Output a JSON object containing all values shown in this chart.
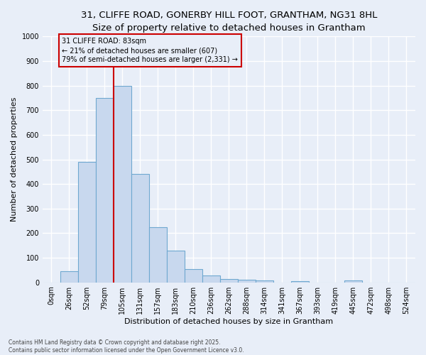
{
  "title_line1": "31, CLIFFE ROAD, GONERBY HILL FOOT, GRANTHAM, NG31 8HL",
  "title_line2": "Size of property relative to detached houses in Grantham",
  "xlabel": "Distribution of detached houses by size in Grantham",
  "ylabel": "Number of detached properties",
  "footer_line1": "Contains HM Land Registry data © Crown copyright and database right 2025.",
  "footer_line2": "Contains public sector information licensed under the Open Government Licence v3.0.",
  "bin_labels": [
    "0sqm",
    "26sqm",
    "52sqm",
    "79sqm",
    "105sqm",
    "131sqm",
    "157sqm",
    "183sqm",
    "210sqm",
    "236sqm",
    "262sqm",
    "288sqm",
    "314sqm",
    "341sqm",
    "367sqm",
    "393sqm",
    "419sqm",
    "445sqm",
    "472sqm",
    "498sqm",
    "524sqm"
  ],
  "counts": [
    0,
    45,
    490,
    750,
    800,
    440,
    225,
    130,
    55,
    28,
    15,
    10,
    8,
    0,
    5,
    0,
    0,
    8,
    0,
    0,
    0
  ],
  "bar_color": "#c8d8ee",
  "bar_edge_color": "#6fa8d0",
  "vline_index": 3,
  "vline_color": "#cc0000",
  "annotation_text_line1": "31 CLIFFE ROAD: 83sqm",
  "annotation_text_line2": "← 21% of detached houses are smaller (607)",
  "annotation_text_line3": "79% of semi-detached houses are larger (2,331) →",
  "ylim": [
    0,
    1000
  ],
  "yticks": [
    0,
    100,
    200,
    300,
    400,
    500,
    600,
    700,
    800,
    900,
    1000
  ],
  "background_color": "#e8eef8",
  "grid_color": "#ffffff",
  "title_fontsize": 9.5,
  "subtitle_fontsize": 8.5,
  "axis_label_fontsize": 8,
  "tick_fontsize": 7,
  "annotation_fontsize": 7,
  "footer_fontsize": 5.5
}
